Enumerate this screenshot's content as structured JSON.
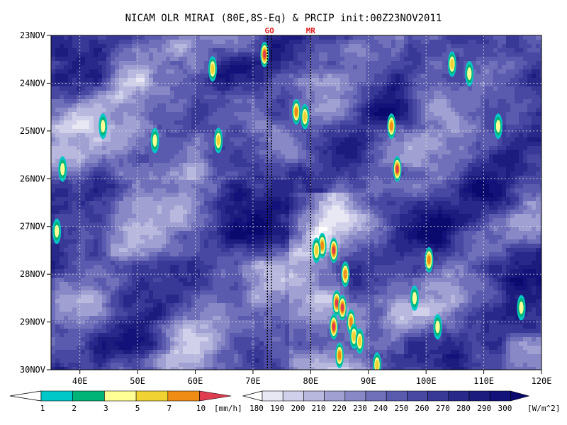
{
  "chart_data": {
    "type": "heatmap",
    "title": "NICAM OLR MIRAI (80E,8S-Eq) & PRCIP init:00Z23NOV2011",
    "xlabel": "",
    "ylabel": "",
    "x_ticks": [
      "40E",
      "50E",
      "60E",
      "70E",
      "80E",
      "90E",
      "100E",
      "110E",
      "120E"
    ],
    "y_ticks": [
      "23NOV",
      "24NOV",
      "25NOV",
      "26NOV",
      "27NOV",
      "28NOV",
      "29NOV",
      "30NOV"
    ],
    "xlim": [
      35,
      120
    ],
    "ylim_days": [
      "23NOV",
      "30NOV"
    ],
    "y_reversed": true,
    "grid": true,
    "vertical_markers": [
      {
        "label": "GO",
        "lons": [
          72.5,
          73.2
        ]
      },
      {
        "label": "MR",
        "lons": [
          80.0
        ]
      }
    ],
    "precip_colorbar": {
      "unit": "[mm/h]",
      "levels": [
        "1",
        "2",
        "3",
        "5",
        "7",
        "10"
      ],
      "colors": [
        "#00c8c8",
        "#00b478",
        "#ffff96",
        "#f0d232",
        "#f08c14",
        "#e03c50"
      ]
    },
    "olr_colorbar": {
      "unit": "[W/m^2]",
      "levels": [
        "180",
        "190",
        "200",
        "210",
        "220",
        "230",
        "240",
        "250",
        "260",
        "270",
        "280",
        "290",
        "300"
      ],
      "colors": [
        "#ffffff",
        "#e8e8f4",
        "#d0d0ea",
        "#b8b8de",
        "#a0a0d2",
        "#8888c6",
        "#7070ba",
        "#5a5aae",
        "#4848a2",
        "#383896",
        "#28288a",
        "#1c1c7e",
        "#12127a",
        "#0a0a6e"
      ]
    },
    "precip_events": [
      {
        "lon": 72.0,
        "day": 0.4,
        "mmh": 10
      },
      {
        "lon": 77.5,
        "day": 1.6,
        "mmh": 7
      },
      {
        "lon": 79.0,
        "day": 1.7,
        "mmh": 5
      },
      {
        "lon": 94.0,
        "day": 1.9,
        "mmh": 7
      },
      {
        "lon": 95.0,
        "day": 2.8,
        "mmh": 10
      },
      {
        "lon": 104.5,
        "day": 0.6,
        "mmh": 5
      },
      {
        "lon": 107.5,
        "day": 0.8,
        "mmh": 3
      },
      {
        "lon": 112.5,
        "day": 1.9,
        "mmh": 3
      },
      {
        "lon": 63.0,
        "day": 0.7,
        "mmh": 5
      },
      {
        "lon": 64.0,
        "day": 2.2,
        "mmh": 5
      },
      {
        "lon": 53.0,
        "day": 2.2,
        "mmh": 3
      },
      {
        "lon": 44.0,
        "day": 1.9,
        "mmh": 3
      },
      {
        "lon": 37.0,
        "day": 2.8,
        "mmh": 3
      },
      {
        "lon": 36.0,
        "day": 4.1,
        "mmh": 3
      },
      {
        "lon": 82.0,
        "day": 4.4,
        "mmh": 7
      },
      {
        "lon": 84.0,
        "day": 4.5,
        "mmh": 10
      },
      {
        "lon": 86.0,
        "day": 5.0,
        "mmh": 7
      },
      {
        "lon": 84.5,
        "day": 5.6,
        "mmh": 10
      },
      {
        "lon": 85.5,
        "day": 5.7,
        "mmh": 10
      },
      {
        "lon": 84.0,
        "day": 6.1,
        "mmh": 10
      },
      {
        "lon": 87.0,
        "day": 6.0,
        "mmh": 7
      },
      {
        "lon": 85.0,
        "day": 6.7,
        "mmh": 7
      },
      {
        "lon": 87.5,
        "day": 6.3,
        "mmh": 5
      },
      {
        "lon": 88.5,
        "day": 6.4,
        "mmh": 5
      },
      {
        "lon": 98.0,
        "day": 5.5,
        "mmh": 3
      },
      {
        "lon": 102.0,
        "day": 6.1,
        "mmh": 3
      },
      {
        "lon": 116.5,
        "day": 5.7,
        "mmh": 3
      },
      {
        "lon": 100.5,
        "day": 4.7,
        "mmh": 7
      },
      {
        "lon": 81.0,
        "day": 4.5,
        "mmh": 5
      },
      {
        "lon": 91.5,
        "day": 6.9,
        "mmh": 5
      }
    ]
  }
}
